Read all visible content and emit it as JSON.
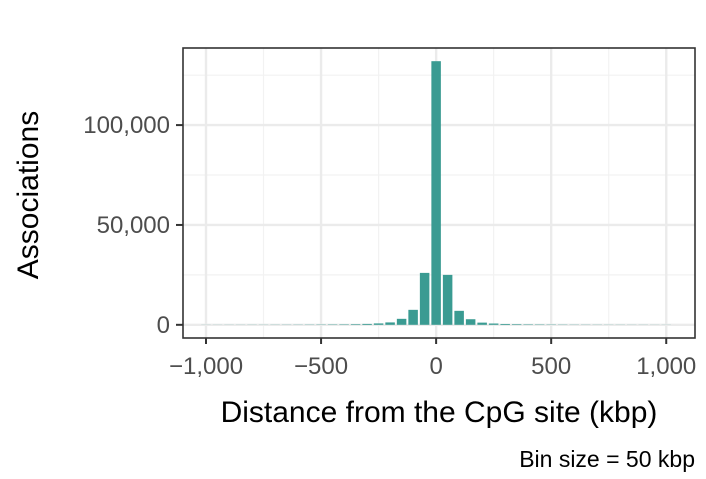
{
  "chart_data": {
    "type": "bar",
    "xlabel": "Distance from the CpG site (kbp)",
    "ylabel": "Associations",
    "caption": "Bin size = 50 kbp",
    "xlim": [
      -1100,
      1125
    ],
    "ylim": [
      -6600,
      138600
    ],
    "x_ticks": [
      {
        "value": -1000,
        "label": "−1,000"
      },
      {
        "value": -500,
        "label": "−500"
      },
      {
        "value": 0,
        "label": "0"
      },
      {
        "value": 500,
        "label": "500"
      },
      {
        "value": 1000,
        "label": "1,000"
      }
    ],
    "y_ticks": [
      {
        "value": 0,
        "label": "0"
      },
      {
        "value": 50000,
        "label": "50,000"
      },
      {
        "value": 100000,
        "label": "100,000"
      }
    ],
    "grid": true,
    "bar_color": "#3a9b92",
    "bin_width": 50,
    "x": [
      -1000,
      -950,
      -900,
      -850,
      -800,
      -750,
      -700,
      -650,
      -600,
      -550,
      -500,
      -450,
      -400,
      -350,
      -300,
      -250,
      -200,
      -150,
      -100,
      -50,
      0,
      50,
      100,
      150,
      200,
      250,
      300,
      350,
      400,
      450,
      500,
      550,
      600,
      650,
      700,
      750,
      800,
      850,
      900,
      950,
      1000
    ],
    "values": [
      50,
      50,
      60,
      60,
      70,
      70,
      80,
      90,
      100,
      120,
      150,
      180,
      220,
      300,
      450,
      700,
      1200,
      3000,
      7500,
      26000,
      132000,
      25000,
      7000,
      2800,
      1100,
      650,
      420,
      300,
      220,
      180,
      150,
      120,
      100,
      90,
      80,
      70,
      70,
      60,
      60,
      50,
      50
    ]
  }
}
